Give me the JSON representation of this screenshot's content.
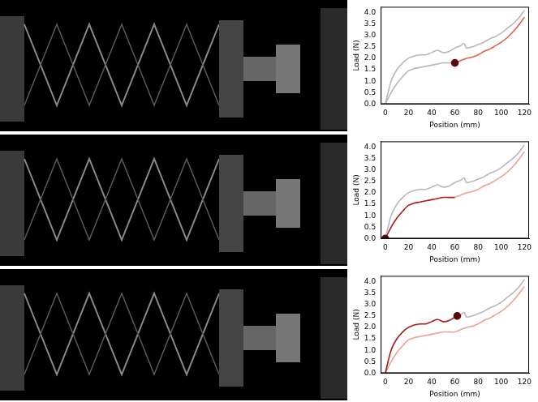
{
  "chart_data": [
    {
      "type": "line",
      "x_label": "Position (mm)",
      "y_label": "Load (N)",
      "xlim": [
        -4,
        124
      ],
      "xticks": [
        0,
        20,
        40,
        60,
        80,
        100,
        120
      ],
      "ylim": [
        0,
        4.25
      ],
      "yticks": [
        {
          "value": 0,
          "label": "0.0"
        },
        0.5,
        {
          "value": 1,
          "label": "1.0"
        },
        1.5,
        {
          "value": 2,
          "label": "2.0"
        },
        2.5,
        {
          "value": 3,
          "label": "3.0"
        },
        3.5,
        {
          "value": 4,
          "label": "4.0"
        }
      ],
      "grid": false,
      "series": [
        {
          "color": "#b8b8b8",
          "marker": "none",
          "line_style": "solid",
          "x": [
            0,
            5,
            10,
            15,
            20,
            25,
            30,
            35,
            40,
            45,
            50,
            55,
            60,
            65,
            68,
            70,
            75,
            80,
            85,
            90,
            95,
            100,
            105,
            110,
            115,
            120
          ],
          "values": [
            0,
            1.0,
            1.5,
            1.8,
            2.0,
            2.1,
            2.15,
            2.15,
            2.25,
            2.35,
            2.25,
            2.3,
            2.45,
            2.55,
            2.65,
            2.45,
            2.5,
            2.6,
            2.7,
            2.85,
            2.95,
            3.1,
            3.3,
            3.5,
            3.75,
            4.1
          ]
        },
        {
          "color": "#b8b8b8",
          "marker": "none",
          "line_style": "solid",
          "x": [
            0,
            5,
            10,
            15,
            20,
            25,
            30,
            35,
            40,
            45,
            50,
            55,
            60
          ],
          "values": [
            0,
            0.5,
            0.9,
            1.2,
            1.45,
            1.55,
            1.6,
            1.65,
            1.7,
            1.75,
            1.8,
            1.8,
            1.8
          ]
        },
        {
          "color": "#e0604a",
          "marker": "none",
          "line_style": "solid",
          "x": [
            60,
            65,
            70,
            75,
            80,
            85,
            90,
            95,
            100,
            105,
            110,
            115,
            120
          ],
          "values": [
            1.8,
            1.9,
            2.0,
            2.05,
            2.15,
            2.3,
            2.4,
            2.55,
            2.7,
            2.9,
            3.15,
            3.45,
            3.8
          ]
        },
        {
          "color": "#5a0a0a",
          "marker": "circle",
          "line_style": "none",
          "x": [
            60
          ],
          "values": [
            1.8
          ]
        }
      ]
    },
    {
      "type": "line",
      "x_label": "Position (mm)",
      "y_label": "Load (N)",
      "xlim": [
        -4,
        124
      ],
      "xticks": [
        0,
        20,
        40,
        60,
        80,
        100,
        120
      ],
      "ylim": [
        0,
        4.25
      ],
      "yticks": [
        {
          "value": 0,
          "label": "0.0"
        },
        0.5,
        {
          "value": 1,
          "label": "1.0"
        },
        1.5,
        {
          "value": 2,
          "label": "2.0"
        },
        2.5,
        {
          "value": 3,
          "label": "3.0"
        },
        3.5,
        {
          "value": 4,
          "label": "4.0"
        }
      ],
      "grid": false,
      "series": [
        {
          "color": "#b8b8b8",
          "marker": "none",
          "line_style": "solid",
          "x": [
            0,
            5,
            10,
            15,
            20,
            25,
            30,
            35,
            40,
            45,
            50,
            55,
            60,
            65,
            68,
            70,
            75,
            80,
            85,
            90,
            95,
            100,
            105,
            110,
            115,
            120
          ],
          "values": [
            0,
            1.0,
            1.5,
            1.8,
            2.0,
            2.1,
            2.15,
            2.15,
            2.25,
            2.35,
            2.25,
            2.3,
            2.45,
            2.55,
            2.65,
            2.45,
            2.5,
            2.6,
            2.7,
            2.85,
            2.95,
            3.1,
            3.3,
            3.5,
            3.75,
            4.1
          ]
        },
        {
          "color": "#b01818",
          "marker": "none",
          "line_style": "solid",
          "x": [
            0,
            5,
            10,
            15,
            20,
            25,
            30,
            35,
            40,
            45,
            50,
            55,
            60
          ],
          "values": [
            0,
            0.5,
            0.9,
            1.2,
            1.45,
            1.55,
            1.6,
            1.65,
            1.7,
            1.75,
            1.8,
            1.8,
            1.8
          ]
        },
        {
          "color": "#f0a090",
          "marker": "none",
          "line_style": "solid",
          "x": [
            60,
            65,
            70,
            75,
            80,
            85,
            90,
            95,
            100,
            105,
            110,
            115,
            120
          ],
          "values": [
            1.8,
            1.9,
            2.0,
            2.05,
            2.15,
            2.3,
            2.4,
            2.55,
            2.7,
            2.9,
            3.15,
            3.45,
            3.8
          ]
        },
        {
          "color": "#5a0a0a",
          "marker": "circle",
          "line_style": "none",
          "x": [
            0
          ],
          "values": [
            0
          ]
        }
      ]
    },
    {
      "type": "line",
      "x_label": "Position (mm)",
      "y_label": "Load (N)",
      "xlim": [
        -4,
        124
      ],
      "xticks": [
        0,
        20,
        40,
        60,
        80,
        100,
        120
      ],
      "ylim": [
        0,
        4.25
      ],
      "yticks": [
        {
          "value": 0,
          "label": "0.0"
        },
        0.5,
        {
          "value": 1,
          "label": "1.0"
        },
        1.5,
        {
          "value": 2,
          "label": "2.0"
        },
        2.5,
        {
          "value": 3,
          "label": "3.0"
        },
        3.5,
        {
          "value": 4,
          "label": "4.0"
        }
      ],
      "grid": false,
      "series": [
        {
          "color": "#b01818",
          "marker": "none",
          "line_style": "solid",
          "x": [
            0,
            5,
            10,
            15,
            20,
            25,
            30,
            35,
            40,
            45,
            50,
            55,
            60,
            62
          ],
          "values": [
            0,
            1.0,
            1.5,
            1.8,
            2.0,
            2.1,
            2.15,
            2.15,
            2.25,
            2.35,
            2.25,
            2.3,
            2.45,
            2.5
          ]
        },
        {
          "color": "#b8b8b8",
          "marker": "none",
          "line_style": "solid",
          "x": [
            62,
            65,
            68,
            70,
            75,
            80,
            85,
            90,
            95,
            100,
            105,
            110,
            115,
            120
          ],
          "values": [
            2.5,
            2.55,
            2.65,
            2.45,
            2.5,
            2.6,
            2.7,
            2.85,
            2.95,
            3.1,
            3.3,
            3.5,
            3.75,
            4.1
          ]
        },
        {
          "color": "#f0a090",
          "marker": "none",
          "line_style": "solid",
          "x": [
            0,
            5,
            10,
            15,
            20,
            25,
            30,
            35,
            40,
            45,
            50,
            55,
            60,
            65,
            70,
            75,
            80,
            85,
            90,
            95,
            100,
            105,
            110,
            115,
            120
          ],
          "values": [
            0,
            0.5,
            0.9,
            1.2,
            1.45,
            1.55,
            1.6,
            1.65,
            1.7,
            1.75,
            1.8,
            1.8,
            1.8,
            1.9,
            2.0,
            2.05,
            2.15,
            2.3,
            2.4,
            2.55,
            2.7,
            2.9,
            3.15,
            3.45,
            3.8
          ]
        },
        {
          "color": "#5a0a0a",
          "marker": "circle",
          "line_style": "none",
          "x": [
            62
          ],
          "values": [
            2.5
          ]
        }
      ]
    }
  ]
}
